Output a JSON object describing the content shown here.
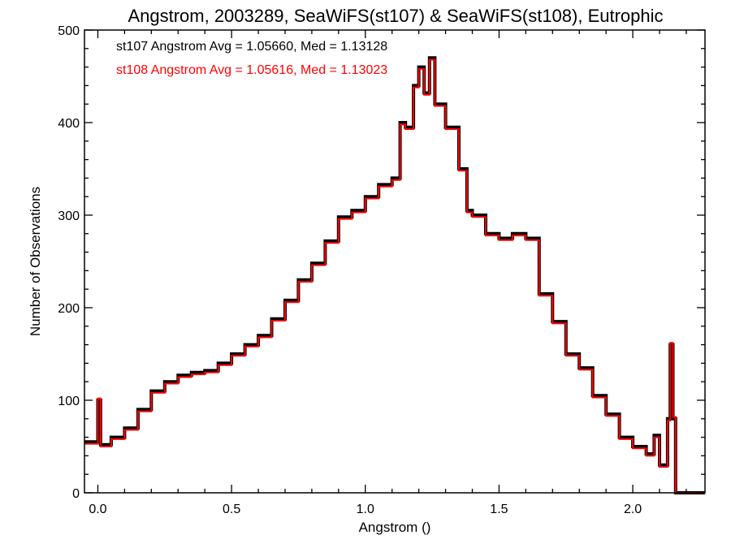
{
  "chart_data": {
    "type": "histogram",
    "title": "Angstrom, 2003289, SeaWiFS(st107) & SeaWiFS(st108), Eutrophic",
    "xlabel": "Angstrom ()",
    "ylabel": "Number of Observations",
    "xlim": [
      -0.05,
      2.27
    ],
    "ylim": [
      0,
      500
    ],
    "x_ticks": [
      0.0,
      0.5,
      1.0,
      1.5,
      2.0
    ],
    "x_tick_labels": [
      "0.0",
      "0.5",
      "1.0",
      "1.5",
      "2.0"
    ],
    "y_ticks": [
      0,
      100,
      200,
      300,
      400,
      500
    ],
    "y_tick_labels": [
      "0",
      "100",
      "200",
      "300",
      "400",
      "500"
    ],
    "grid": false,
    "annotations": [
      {
        "text": "st107 Angstrom Avg = 1.05660, Med = 1.13128",
        "color": "#000000"
      },
      {
        "text": "st108 Angstrom Avg = 1.05616, Med = 1.13023",
        "color": "#ff0000"
      }
    ],
    "series": [
      {
        "color": "#000000",
        "stroke_width": 4,
        "x": [
          -0.05,
          0.0,
          0.01,
          0.05,
          0.1,
          0.15,
          0.2,
          0.25,
          0.3,
          0.35,
          0.4,
          0.45,
          0.5,
          0.55,
          0.6,
          0.65,
          0.7,
          0.75,
          0.8,
          0.85,
          0.9,
          0.95,
          1.0,
          1.05,
          1.1,
          1.13,
          1.15,
          1.18,
          1.2,
          1.22,
          1.24,
          1.26,
          1.3,
          1.35,
          1.38,
          1.4,
          1.45,
          1.5,
          1.55,
          1.6,
          1.65,
          1.7,
          1.75,
          1.8,
          1.85,
          1.9,
          1.95,
          2.0,
          2.05,
          2.08,
          2.1,
          2.13,
          2.14,
          2.15,
          2.16,
          2.27
        ],
        "y": [
          55,
          100,
          52,
          60,
          70,
          90,
          110,
          120,
          127,
          130,
          132,
          140,
          150,
          160,
          170,
          188,
          208,
          230,
          248,
          272,
          298,
          305,
          320,
          333,
          340,
          400,
          395,
          440,
          460,
          432,
          470,
          420,
          395,
          350,
          305,
          300,
          280,
          275,
          280,
          275,
          215,
          185,
          150,
          135,
          105,
          85,
          60,
          50,
          42,
          62,
          30,
          80,
          160,
          80,
          0,
          0
        ]
      },
      {
        "color": "#ff0000",
        "stroke_width": 2,
        "x": [
          -0.05,
          0.0,
          0.01,
          0.05,
          0.1,
          0.15,
          0.2,
          0.25,
          0.3,
          0.35,
          0.4,
          0.45,
          0.5,
          0.55,
          0.6,
          0.65,
          0.7,
          0.75,
          0.8,
          0.85,
          0.9,
          0.95,
          1.0,
          1.05,
          1.1,
          1.13,
          1.15,
          1.18,
          1.2,
          1.22,
          1.24,
          1.26,
          1.3,
          1.35,
          1.38,
          1.4,
          1.45,
          1.5,
          1.55,
          1.6,
          1.65,
          1.7,
          1.75,
          1.8,
          1.85,
          1.9,
          1.95,
          2.0,
          2.05,
          2.08,
          2.1,
          2.13,
          2.14,
          2.15,
          2.16,
          2.27
        ],
        "y": [
          53,
          102,
          50,
          58,
          68,
          88,
          108,
          118,
          125,
          128,
          130,
          138,
          148,
          158,
          168,
          186,
          206,
          228,
          246,
          270,
          296,
          303,
          318,
          331,
          338,
          398,
          393,
          438,
          458,
          430,
          468,
          418,
          393,
          348,
          303,
          298,
          278,
          273,
          278,
          273,
          213,
          183,
          148,
          133,
          103,
          83,
          58,
          48,
          40,
          60,
          28,
          78,
          162,
          82,
          0,
          0
        ]
      }
    ]
  }
}
